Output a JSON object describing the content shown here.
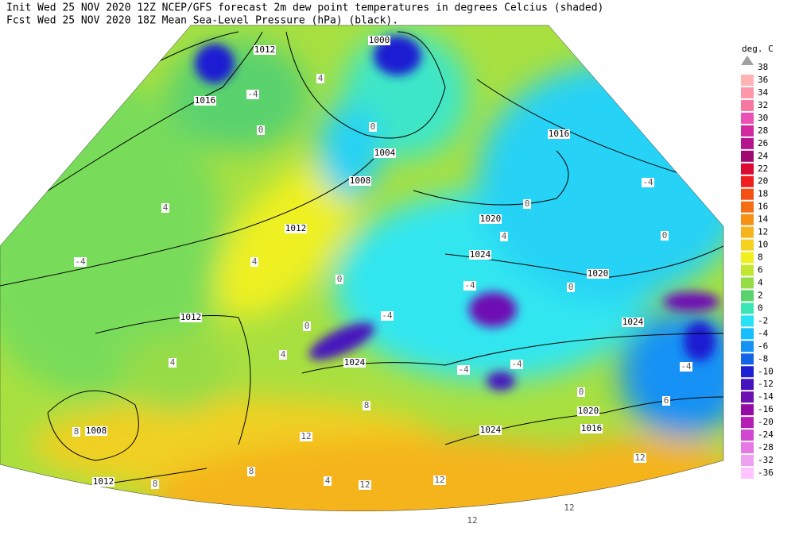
{
  "header": {
    "line1": "Init  Wed 25 NOV 2020 12Z  NCEP/GFS forecast 2m dew point temperatures in degrees Celcius (shaded)",
    "line2": "Fcst Wed 25 NOV 2020 18Z  Mean Sea-Level Pressure (hPa) (black)."
  },
  "legend": {
    "title": "deg. C",
    "top_label": 38,
    "top_color": "#a0a0a0",
    "entries": [
      {
        "label": 36,
        "color": "#ffb4b4"
      },
      {
        "label": 34,
        "color": "#ff96aa"
      },
      {
        "label": 32,
        "color": "#f578a0"
      },
      {
        "label": 30,
        "color": "#eb50b4"
      },
      {
        "label": 28,
        "color": "#d228a0"
      },
      {
        "label": 26,
        "color": "#b4148c"
      },
      {
        "label": 24,
        "color": "#a00a6e"
      },
      {
        "label": 22,
        "color": "#dc0a32"
      },
      {
        "label": 20,
        "color": "#f01e1e"
      },
      {
        "label": 18,
        "color": "#f55014"
      },
      {
        "label": 16,
        "color": "#f56e14"
      },
      {
        "label": 14,
        "color": "#f59114"
      },
      {
        "label": 12,
        "color": "#f5b41e"
      },
      {
        "label": 10,
        "color": "#f5d21e"
      },
      {
        "label": 8,
        "color": "#f0f01e"
      },
      {
        "label": 6,
        "color": "#c3e632"
      },
      {
        "label": 4,
        "color": "#96dc46"
      },
      {
        "label": 2,
        "color": "#5ad26e"
      },
      {
        "label": 0,
        "color": "#3ce6b4"
      },
      {
        "label": -2,
        "color": "#28e1f5"
      },
      {
        "label": -4,
        "color": "#14beff"
      },
      {
        "label": -6,
        "color": "#1491f5"
      },
      {
        "label": -8,
        "color": "#1464e6"
      },
      {
        "label": -10,
        "color": "#1e1ed2"
      },
      {
        "label": -12,
        "color": "#4614be"
      },
      {
        "label": -14,
        "color": "#6e0fb4"
      },
      {
        "label": -16,
        "color": "#960aa5"
      },
      {
        "label": -20,
        "color": "#b41eb4"
      },
      {
        "label": -24,
        "color": "#d246d2"
      },
      {
        "label": -28,
        "color": "#e678e6"
      },
      {
        "label": -32,
        "color": "#f0a0f0"
      },
      {
        "label": -36,
        "color": "#ffc3ff"
      }
    ]
  },
  "isobar_labels": [
    "1012",
    "1000",
    "1016",
    "1016",
    "1004",
    "1008",
    "1012",
    "1020",
    "1024",
    "1020",
    "1012",
    "1024",
    "1024",
    "1008",
    "1020",
    "1016",
    "1012",
    "1024"
  ],
  "dewpoint_labels": [
    "-4",
    "4",
    "0",
    "0",
    "4",
    "-4",
    "4",
    "4",
    "0",
    "-4",
    "0",
    "0",
    "-4",
    "0",
    "-4",
    "0",
    "4",
    "4",
    "0",
    "8",
    "8",
    "12",
    "12",
    "12",
    "12",
    "12",
    "12",
    "8",
    "4",
    "8",
    "6",
    "-4",
    "-4",
    "-4"
  ]
}
